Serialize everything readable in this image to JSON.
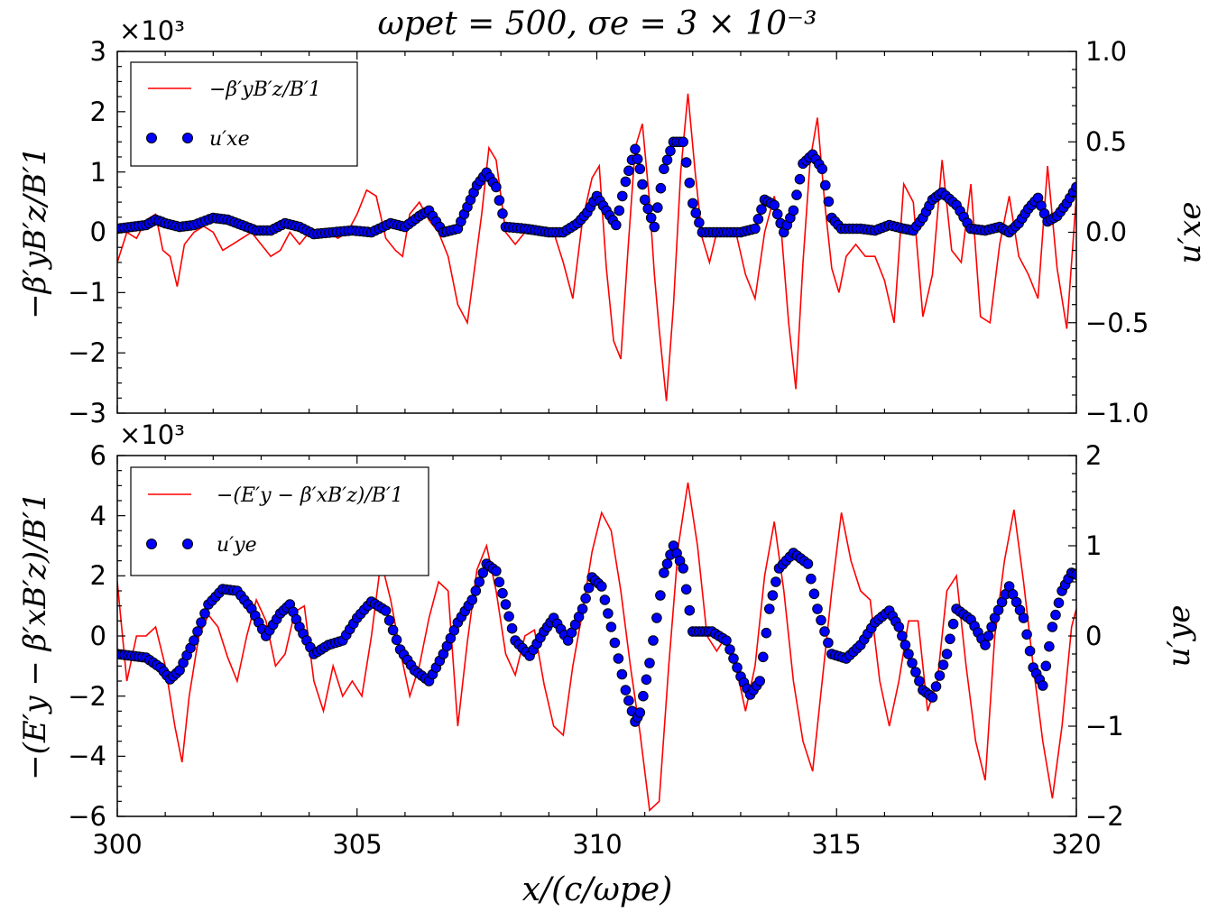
{
  "figure": {
    "title": "ωpet = 500, σe = 3 × 10⁻³",
    "xlabel": "x/(c/ωpe)"
  },
  "chart_data": [
    {
      "type": "line",
      "panel": "top",
      "title": "ωpet = 500, σe = 3 × 10⁻³",
      "xlabel": "",
      "ylabel": "−β′yB′z/B′1",
      "ylabel_right": "u′xe",
      "xlim": [
        300,
        320
      ],
      "ylim": [
        -3000,
        3000
      ],
      "ylim_right": [
        -1.0,
        1.0
      ],
      "y_multiplier": "×10³",
      "yticks": [
        "−3",
        "−2",
        "−1",
        "0",
        "1",
        "2",
        "3"
      ],
      "yticks_right": [
        "−1.0",
        "−0.5",
        "0.0",
        "0.5",
        "1.0"
      ],
      "legend_position": "upper-left",
      "series": [
        {
          "name": "−β′yB′z/B′1",
          "kind": "line",
          "color": "#ff0000",
          "axis": "left",
          "x": [
            300.0,
            300.2,
            300.4,
            300.6,
            300.8,
            300.95,
            301.1,
            301.25,
            301.4,
            301.6,
            301.8,
            302.0,
            302.2,
            302.4,
            302.6,
            302.8,
            303.0,
            303.2,
            303.4,
            303.6,
            303.8,
            304.0,
            304.2,
            304.4,
            304.6,
            304.8,
            305.0,
            305.2,
            305.4,
            305.6,
            305.8,
            305.95,
            306.1,
            306.3,
            306.5,
            306.7,
            306.9,
            307.1,
            307.3,
            307.45,
            307.6,
            307.75,
            307.9,
            308.1,
            308.3,
            308.5,
            308.7,
            308.9,
            309.1,
            309.3,
            309.5,
            309.7,
            309.9,
            310.05,
            310.2,
            310.35,
            310.5,
            310.65,
            310.8,
            310.95,
            311.1,
            311.2,
            311.3,
            311.45,
            311.6,
            311.75,
            311.9,
            312.05,
            312.2,
            312.35,
            312.5,
            312.7,
            312.9,
            313.1,
            313.3,
            313.5,
            313.7,
            313.85,
            314.0,
            314.15,
            314.3,
            314.45,
            314.6,
            314.75,
            314.9,
            315.05,
            315.2,
            315.4,
            315.6,
            315.8,
            316.0,
            316.2,
            316.4,
            316.6,
            316.8,
            317.0,
            317.2,
            317.4,
            317.6,
            317.8,
            318.0,
            318.2,
            318.4,
            318.6,
            318.8,
            319.0,
            319.2,
            319.4,
            319.6,
            319.8,
            320.0
          ],
          "y": [
            -500,
            0,
            -100,
            200,
            300,
            -300,
            -400,
            -900,
            -200,
            0,
            100,
            0,
            -300,
            -200,
            -100,
            0,
            -200,
            -400,
            -300,
            0,
            -200,
            0,
            0,
            0,
            -100,
            0,
            300,
            700,
            600,
            -100,
            -300,
            -400,
            300,
            500,
            200,
            0,
            -400,
            -1200,
            -1500,
            -600,
            300,
            1400,
            1200,
            0,
            -200,
            0,
            0,
            0,
            0,
            -500,
            -1100,
            200,
            900,
            1100,
            -600,
            -1800,
            -2100,
            -300,
            1400,
            1800,
            500,
            -700,
            -1600,
            -2800,
            -1200,
            1000,
            2300,
            1000,
            -100,
            -500,
            0,
            0,
            0,
            -700,
            -1100,
            0,
            600,
            0,
            -1500,
            -2600,
            -500,
            1200,
            1900,
            500,
            -600,
            -1000,
            -400,
            -200,
            -400,
            -400,
            -800,
            -1500,
            800,
            500,
            -1400,
            -700,
            1200,
            -300,
            -500,
            800,
            -1400,
            -1500,
            -200,
            600,
            -400,
            -700,
            -1100,
            1100,
            -600,
            -1600,
            600
          ],
          "values_source": "estimated from gridlines"
        },
        {
          "name": "u′xe",
          "kind": "markers",
          "color": "#0000ff",
          "axis": "right",
          "x": [
            300.0,
            300.3,
            300.6,
            300.8,
            301.0,
            301.3,
            301.6,
            302.0,
            302.3,
            302.6,
            302.9,
            303.2,
            303.5,
            303.8,
            304.1,
            304.5,
            304.9,
            305.3,
            305.7,
            306.0,
            306.3,
            306.5,
            306.8,
            307.1,
            307.3,
            307.5,
            307.7,
            307.9,
            308.1,
            308.5,
            309.0,
            309.3,
            309.6,
            309.8,
            310.0,
            310.2,
            310.4,
            310.6,
            310.8,
            310.9,
            311.0,
            311.2,
            311.4,
            311.6,
            311.8,
            312.0,
            312.2,
            312.5,
            313.0,
            313.3,
            313.5,
            313.7,
            313.9,
            314.1,
            314.3,
            314.5,
            314.7,
            314.9,
            315.1,
            315.5,
            315.8,
            316.1,
            316.4,
            316.6,
            316.8,
            317.0,
            317.2,
            317.5,
            317.8,
            318.1,
            318.4,
            318.6,
            318.8,
            319.0,
            319.2,
            319.4,
            319.6,
            319.8,
            320.0
          ],
          "y": [
            0.02,
            0.03,
            0.04,
            0.07,
            0.05,
            0.03,
            0.04,
            0.08,
            0.07,
            0.04,
            0.01,
            0.01,
            0.05,
            0.03,
            -0.01,
            0.0,
            0.01,
            0.0,
            0.05,
            0.03,
            0.09,
            0.12,
            0.0,
            0.02,
            0.14,
            0.26,
            0.33,
            0.25,
            0.03,
            0.02,
            0.0,
            0.0,
            0.05,
            0.11,
            0.2,
            0.12,
            0.04,
            0.28,
            0.46,
            0.35,
            0.18,
            0.03,
            0.35,
            0.5,
            0.5,
            0.16,
            0.0,
            0.0,
            0.0,
            0.02,
            0.18,
            0.15,
            0.0,
            0.12,
            0.38,
            0.43,
            0.35,
            0.08,
            0.02,
            0.02,
            0.01,
            0.04,
            0.02,
            0.01,
            0.08,
            0.18,
            0.22,
            0.15,
            0.02,
            0.01,
            0.03,
            0.0,
            0.05,
            0.13,
            0.19,
            0.06,
            0.09,
            0.16,
            0.25
          ],
          "values_source": "estimated from gridlines"
        }
      ]
    },
    {
      "type": "line",
      "panel": "bottom",
      "xlabel": "x/(c/ωpe)",
      "ylabel": "−(E′y − β′xB′z)/B′1",
      "ylabel_right": "u′ye",
      "xlim": [
        300,
        320
      ],
      "ylim": [
        -6000,
        6000
      ],
      "ylim_right": [
        -2,
        2
      ],
      "y_multiplier": "×10³",
      "xticks": [
        "300",
        "305",
        "310",
        "315",
        "320"
      ],
      "yticks": [
        "−6",
        "−4",
        "−2",
        "0",
        "2",
        "4",
        "6"
      ],
      "yticks_right": [
        "−2",
        "−1",
        "0",
        "1",
        "2"
      ],
      "legend_position": "upper-left",
      "series": [
        {
          "name": "−(E′y − β′xB′z)/B′1",
          "kind": "line",
          "color": "#ff0000",
          "axis": "left",
          "x": [
            300.0,
            300.2,
            300.4,
            300.6,
            300.8,
            301.0,
            301.2,
            301.35,
            301.5,
            301.7,
            301.9,
            302.1,
            302.3,
            302.5,
            302.7,
            302.9,
            303.1,
            303.3,
            303.5,
            303.7,
            303.9,
            304.1,
            304.3,
            304.5,
            304.7,
            304.9,
            305.1,
            305.3,
            305.5,
            305.7,
            305.9,
            306.1,
            306.3,
            306.5,
            306.7,
            306.9,
            307.1,
            307.3,
            307.5,
            307.7,
            307.9,
            308.1,
            308.3,
            308.5,
            308.7,
            308.9,
            309.1,
            309.3,
            309.5,
            309.7,
            309.9,
            310.1,
            310.3,
            310.5,
            310.7,
            310.9,
            311.1,
            311.3,
            311.5,
            311.7,
            311.9,
            312.1,
            312.3,
            312.5,
            312.7,
            312.9,
            313.1,
            313.3,
            313.5,
            313.7,
            313.9,
            314.1,
            314.3,
            314.5,
            314.7,
            314.9,
            315.1,
            315.3,
            315.5,
            315.7,
            315.9,
            316.1,
            316.3,
            316.5,
            316.7,
            316.9,
            317.1,
            317.3,
            317.5,
            317.7,
            317.9,
            318.1,
            318.3,
            318.5,
            318.7,
            318.9,
            319.1,
            319.3,
            319.5,
            319.7,
            319.9,
            320.0
          ],
          "y": [
            1800,
            -1500,
            0,
            0,
            300,
            -1000,
            -3000,
            -4200,
            -2000,
            0,
            700,
            300,
            -700,
            -1500,
            0,
            1200,
            500,
            -1000,
            -600,
            800,
            1000,
            -1500,
            -2500,
            -1000,
            -2000,
            -1500,
            -2000,
            0,
            2500,
            1200,
            -500,
            -2000,
            -1000,
            600,
            1800,
            1500,
            -3000,
            -200,
            2200,
            3000,
            1500,
            -600,
            -1300,
            0,
            200,
            -1600,
            -3000,
            -3300,
            -1000,
            800,
            2800,
            4100,
            3500,
            1500,
            -1000,
            -3200,
            -5800,
            -5500,
            -1000,
            3000,
            5100,
            3000,
            0,
            -500,
            0,
            -1000,
            -2500,
            -1000,
            2000,
            3800,
            1500,
            -1500,
            -3500,
            -4500,
            -1500,
            1500,
            4100,
            2500,
            1500,
            1200,
            -1500,
            -3000,
            -1500,
            500,
            500,
            -2500,
            -1500,
            1500,
            2000,
            -1000,
            -3500,
            -4800,
            0,
            2500,
            4200,
            1800,
            -1000,
            -3500,
            -5400,
            -3000,
            300,
            900
          ],
          "values_source": "estimated from gridlines"
        },
        {
          "name": "u′ye",
          "kind": "markers",
          "color": "#0000ff",
          "axis": "right",
          "x": [
            300.0,
            300.3,
            300.6,
            300.9,
            301.1,
            301.3,
            301.6,
            301.9,
            302.2,
            302.5,
            302.8,
            303.1,
            303.4,
            303.6,
            303.8,
            304.1,
            304.4,
            304.7,
            305.0,
            305.3,
            305.6,
            305.9,
            306.2,
            306.5,
            306.8,
            307.1,
            307.4,
            307.7,
            307.9,
            308.1,
            308.3,
            308.6,
            308.9,
            309.1,
            309.4,
            309.7,
            309.9,
            310.1,
            310.3,
            310.6,
            310.8,
            310.9,
            311.1,
            311.4,
            311.6,
            311.8,
            312.0,
            312.2,
            312.4,
            312.7,
            313.0,
            313.2,
            313.4,
            313.6,
            313.8,
            314.1,
            314.4,
            314.6,
            314.9,
            315.2,
            315.5,
            315.8,
            316.1,
            316.3,
            316.5,
            316.8,
            317.0,
            317.3,
            317.5,
            317.8,
            318.1,
            318.3,
            318.6,
            318.9,
            319.1,
            319.3,
            319.5,
            319.7,
            319.9,
            320.0
          ],
          "y": [
            -0.2,
            -0.22,
            -0.24,
            -0.35,
            -0.48,
            -0.38,
            -0.05,
            0.35,
            0.52,
            0.5,
            0.3,
            0.0,
            0.25,
            0.35,
            0.1,
            -0.2,
            -0.1,
            -0.05,
            0.2,
            0.38,
            0.28,
            -0.15,
            -0.38,
            -0.5,
            -0.2,
            0.15,
            0.4,
            0.8,
            0.72,
            0.35,
            -0.05,
            -0.22,
            0.05,
            0.2,
            -0.05,
            0.3,
            0.65,
            0.55,
            0.1,
            -0.6,
            -0.95,
            -0.85,
            -0.3,
            0.7,
            1.0,
            0.75,
            0.05,
            0.05,
            0.05,
            -0.05,
            -0.45,
            -0.65,
            -0.5,
            0.3,
            0.75,
            0.92,
            0.8,
            0.3,
            -0.2,
            -0.25,
            -0.1,
            0.15,
            0.28,
            0.1,
            -0.2,
            -0.6,
            -0.68,
            -0.2,
            0.3,
            0.18,
            -0.1,
            0.2,
            0.55,
            0.2,
            -0.35,
            -0.55,
            0.1,
            0.5,
            0.7,
            0.68
          ],
          "values_source": "estimated from gridlines"
        }
      ]
    }
  ],
  "colors": {
    "line": "#ff0000",
    "marker_fill": "#0000ff",
    "marker_edge": "#000000",
    "axes": "#000000",
    "background": "#ffffff"
  }
}
